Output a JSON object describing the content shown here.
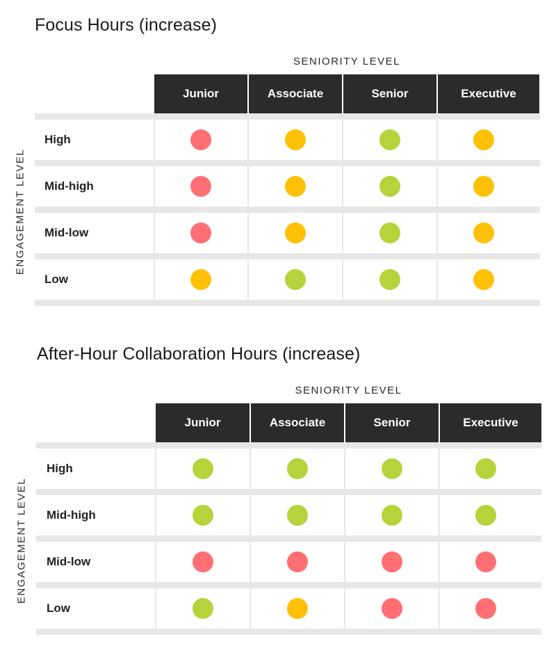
{
  "colors": {
    "red": "#ff6f73",
    "orange": "#ffc107",
    "green": "#b6d33b",
    "header_bg": "#2b2b2b",
    "band": "#e7e7e7"
  },
  "chart_data": [
    {
      "type": "table",
      "title": "Focus Hours (increase)",
      "col_axis_label": "SENIORITY LEVEL",
      "row_axis_label": "ENGAGEMENT LEVEL",
      "columns": [
        "Junior",
        "Associate",
        "Senior",
        "Executive"
      ],
      "rows": [
        {
          "label": "High",
          "cells": [
            "red",
            "orange",
            "green",
            "orange"
          ]
        },
        {
          "label": "Mid-high",
          "cells": [
            "red",
            "orange",
            "green",
            "orange"
          ]
        },
        {
          "label": "Mid-low",
          "cells": [
            "red",
            "orange",
            "green",
            "orange"
          ]
        },
        {
          "label": "Low",
          "cells": [
            "orange",
            "green",
            "green",
            "orange"
          ]
        }
      ]
    },
    {
      "type": "table",
      "title": "After-Hour Collaboration Hours (increase)",
      "col_axis_label": "SENIORITY LEVEL",
      "row_axis_label": "ENGAGEMENT LEVEL",
      "columns": [
        "Junior",
        "Associate",
        "Senior",
        "Executive"
      ],
      "rows": [
        {
          "label": "High",
          "cells": [
            "green",
            "green",
            "green",
            "green"
          ]
        },
        {
          "label": "Mid-high",
          "cells": [
            "green",
            "green",
            "green",
            "green"
          ]
        },
        {
          "label": "Mid-low",
          "cells": [
            "red",
            "red",
            "red",
            "red"
          ]
        },
        {
          "label": "Low",
          "cells": [
            "green",
            "orange",
            "red",
            "red"
          ]
        }
      ]
    }
  ]
}
